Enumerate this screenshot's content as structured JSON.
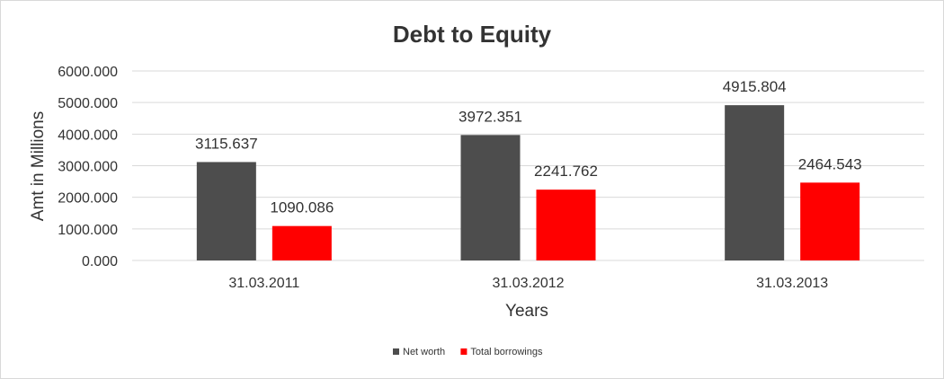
{
  "chart_data": {
    "type": "bar",
    "title": "Debt to Equity",
    "xlabel": "Years",
    "ylabel": "Amt in Millions",
    "categories": [
      "31.03.2011",
      "31.03.2012",
      "31.03.2013"
    ],
    "series": [
      {
        "name": "Net worth",
        "values": [
          3115.637,
          3972.351,
          4915.804
        ],
        "color": "#4d4d4d"
      },
      {
        "name": "Total borrowings",
        "values": [
          1090.086,
          2241.762,
          2464.543
        ],
        "color": "#ff0000"
      }
    ],
    "ylim": [
      0,
      6000
    ],
    "yticks": [
      "0.000",
      "1000.000",
      "2000.000",
      "3000.000",
      "4000.000",
      "5000.000",
      "6000.000"
    ],
    "data_labels": [
      [
        "3115.637",
        "3972.351",
        "4915.804"
      ],
      [
        "1090.086",
        "2241.762",
        "2464.543"
      ]
    ],
    "grid": true,
    "legend_position": "bottom"
  }
}
